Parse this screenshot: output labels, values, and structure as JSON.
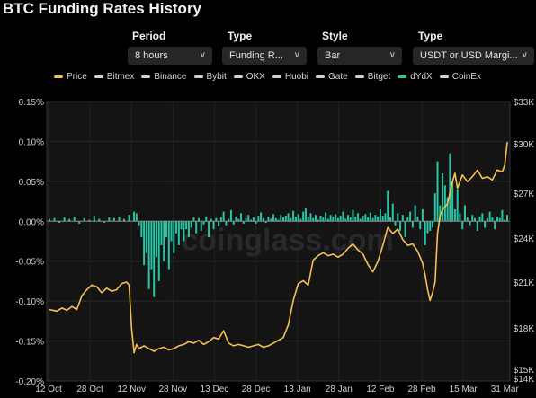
{
  "title": "BTC Funding Rates History",
  "controls": {
    "period": {
      "label": "Period",
      "value": "8 hours"
    },
    "type1": {
      "label": "Type",
      "value": "Funding R..."
    },
    "style": {
      "label": "Style",
      "value": "Bar"
    },
    "type2": {
      "label": "Type",
      "value": "USDT or USD Margi..."
    }
  },
  "legend": [
    {
      "name": "Price",
      "color": "#f5c054"
    },
    {
      "name": "Bitmex",
      "color": "#d0d0d0"
    },
    {
      "name": "Binance",
      "color": "#d0d0d0"
    },
    {
      "name": "Bybit",
      "color": "#d0d0d0"
    },
    {
      "name": "OKX",
      "color": "#d0d0d0"
    },
    {
      "name": "Huobi",
      "color": "#d0d0d0"
    },
    {
      "name": "Gate",
      "color": "#d0d0d0"
    },
    {
      "name": "Bitget",
      "color": "#d0d0d0"
    },
    {
      "name": "dYdX",
      "color": "#26c6a6"
    },
    {
      "name": "CoinEx",
      "color": "#d0d0d0"
    }
  ],
  "watermark": "coinglass.com",
  "chart_data": {
    "type": "bar+line",
    "title": "BTC Funding Rates History",
    "x_ticks": [
      "12 Oct",
      "28 Oct",
      "12 Nov",
      "28 Nov",
      "13 Dec",
      "28 Dec",
      "13 Jan",
      "28 Jan",
      "12 Feb",
      "28 Feb",
      "15 Mar",
      "31 Mar"
    ],
    "y_left": {
      "ticks": [
        "0.15%",
        "0.10%",
        "0.05%",
        "0.00%",
        "-0.05%",
        "-0.10%",
        "-0.15%",
        "-0.20%"
      ],
      "range": [
        -0.2,
        0.15
      ],
      "unit": "%"
    },
    "y_right": {
      "ticks": [
        "$33K",
        "$30K",
        "$27K",
        "$24K",
        "$21K",
        "$18K",
        "$15K",
        "$14K"
      ]
    },
    "grid": true,
    "legend_position": "top",
    "series": [
      {
        "name": "dYdX",
        "kind": "bar",
        "axis": "left",
        "color": "#26c6a6",
        "points": [
          [
            0,
            0.003
          ],
          [
            2,
            0.004
          ],
          [
            4,
            -0.002
          ],
          [
            6,
            0.005
          ],
          [
            8,
            0.003
          ],
          [
            10,
            0.006
          ],
          [
            12,
            -0.003
          ],
          [
            14,
            0.004
          ],
          [
            16,
            0.002
          ],
          [
            18,
            0.007
          ],
          [
            20,
            0.003
          ],
          [
            22,
            -0.002
          ],
          [
            24,
            0.005
          ],
          [
            26,
            0.004
          ],
          [
            28,
            0.006
          ],
          [
            30,
            0.003
          ],
          [
            32,
            0.008
          ],
          [
            34,
            0.012
          ],
          [
            35,
            0.01
          ],
          [
            36,
            -0.005
          ],
          [
            37,
            -0.02
          ],
          [
            38,
            -0.055
          ],
          [
            39,
            -0.04
          ],
          [
            40,
            -0.085
          ],
          [
            41,
            -0.06
          ],
          [
            42,
            -0.095
          ],
          [
            43,
            -0.045
          ],
          [
            44,
            -0.075
          ],
          [
            45,
            -0.03
          ],
          [
            46,
            -0.05
          ],
          [
            47,
            -0.02
          ],
          [
            48,
            -0.06
          ],
          [
            49,
            -0.025
          ],
          [
            50,
            -0.04
          ],
          [
            51,
            -0.015
          ],
          [
            52,
            -0.03
          ],
          [
            53,
            -0.01
          ],
          [
            54,
            -0.025
          ],
          [
            55,
            -0.01
          ],
          [
            56,
            -0.02
          ],
          [
            57,
            -0.008
          ],
          [
            58,
            0.005
          ],
          [
            59,
            -0.015
          ],
          [
            60,
            0.004
          ],
          [
            61,
            -0.012
          ],
          [
            62,
            -0.004
          ],
          [
            63,
            0.006
          ],
          [
            64,
            -0.02
          ],
          [
            65,
            0.003
          ],
          [
            66,
            -0.01
          ],
          [
            67,
            0.004
          ],
          [
            68,
            -0.006
          ],
          [
            69,
            0.005
          ],
          [
            70,
            0.012
          ],
          [
            71,
            -0.005
          ],
          [
            72,
            0.003
          ],
          [
            73,
            0.014
          ],
          [
            74,
            -0.004
          ],
          [
            75,
            0.006
          ],
          [
            76,
            0.003
          ],
          [
            77,
            0.01
          ],
          [
            78,
            -0.003
          ],
          [
            79,
            0.004
          ],
          [
            80,
            0.008
          ],
          [
            81,
            0.002
          ],
          [
            82,
            0.005
          ],
          [
            83,
            -0.003
          ],
          [
            84,
            0.007
          ],
          [
            85,
            0.011
          ],
          [
            86,
            0.004
          ],
          [
            87,
            -0.002
          ],
          [
            88,
            0.006
          ],
          [
            89,
            0.003
          ],
          [
            90,
            0.009
          ],
          [
            91,
            0.004
          ],
          [
            92,
            0.002
          ],
          [
            93,
            0.008
          ],
          [
            94,
            0.005
          ],
          [
            95,
            0.007
          ],
          [
            96,
            0.01
          ],
          [
            97,
            0.004
          ],
          [
            98,
            0.013
          ],
          [
            99,
            0.006
          ],
          [
            100,
            0.009
          ],
          [
            101,
            0.003
          ],
          [
            102,
            0.012
          ],
          [
            103,
            0.016
          ],
          [
            104,
            0.006
          ],
          [
            105,
            0.01
          ],
          [
            106,
            0.004
          ],
          [
            107,
            0.008
          ],
          [
            108,
            0.002
          ],
          [
            109,
            0.007
          ],
          [
            110,
            0.005
          ],
          [
            111,
            0.011
          ],
          [
            112,
            0.003
          ],
          [
            113,
            0.008
          ],
          [
            114,
            0.006
          ],
          [
            115,
            0.009
          ],
          [
            116,
            0.004
          ],
          [
            117,
            0.007
          ],
          [
            118,
            0.012
          ],
          [
            119,
            0.003
          ],
          [
            120,
            0.008
          ],
          [
            121,
            0.005
          ],
          [
            122,
            0.014
          ],
          [
            123,
            0.006
          ],
          [
            124,
            0.01
          ],
          [
            125,
            0.003
          ],
          [
            126,
            0.007
          ],
          [
            127,
            0.009
          ],
          [
            128,
            0.005
          ],
          [
            129,
            0.011
          ],
          [
            130,
            0.004
          ],
          [
            131,
            0.008
          ],
          [
            132,
            0.006
          ],
          [
            133,
            0.015
          ],
          [
            134,
            0.007
          ],
          [
            135,
            0.01
          ],
          [
            136,
            0.038
          ],
          [
            137,
            0.005
          ],
          [
            138,
            0.022
          ],
          [
            139,
            -0.005
          ],
          [
            140,
            0.01
          ],
          [
            141,
            -0.012
          ],
          [
            142,
            0.008
          ],
          [
            143,
            -0.02
          ],
          [
            144,
            0.005
          ],
          [
            145,
            0.012
          ],
          [
            146,
            -0.008
          ],
          [
            147,
            0.02
          ],
          [
            148,
            0.006
          ],
          [
            149,
            -0.01
          ],
          [
            150,
            0.015
          ],
          [
            151,
            -0.03
          ],
          [
            152,
            -0.015
          ],
          [
            153,
            -0.012
          ],
          [
            154,
            -0.008
          ],
          [
            155,
            0.035
          ],
          [
            156,
            0.075
          ],
          [
            157,
            0.02
          ],
          [
            158,
            0.06
          ],
          [
            159,
            0.045
          ],
          [
            160,
            0.03
          ],
          [
            161,
            0.085
          ],
          [
            162,
            0.05
          ],
          [
            163,
            0.015
          ],
          [
            164,
            0.04
          ],
          [
            165,
            0.01
          ],
          [
            166,
            -0.01
          ],
          [
            167,
            0.02
          ],
          [
            168,
            0.005
          ],
          [
            169,
            -0.005
          ],
          [
            170,
            0.008
          ],
          [
            171,
            0.004
          ],
          [
            172,
            -0.012
          ],
          [
            173,
            0.006
          ],
          [
            174,
            0.01
          ],
          [
            175,
            -0.008
          ],
          [
            176,
            0.004
          ],
          [
            177,
            0.012
          ],
          [
            178,
            0.005
          ],
          [
            179,
            -0.01
          ],
          [
            180,
            0.006
          ],
          [
            181,
            0.004
          ],
          [
            182,
            0.014
          ],
          [
            183,
            0.002
          ],
          [
            184,
            0.008
          ]
        ]
      },
      {
        "name": "Price",
        "kind": "line",
        "axis": "right",
        "color": "#f5c054",
        "points": [
          [
            0,
            19200
          ],
          [
            3,
            19100
          ],
          [
            5,
            19300
          ],
          [
            7,
            19150
          ],
          [
            9,
            19400
          ],
          [
            11,
            19200
          ],
          [
            13,
            20100
          ],
          [
            15,
            20500
          ],
          [
            17,
            20800
          ],
          [
            19,
            20700
          ],
          [
            21,
            20300
          ],
          [
            23,
            20600
          ],
          [
            25,
            20400
          ],
          [
            27,
            20500
          ],
          [
            29,
            20900
          ],
          [
            31,
            21000
          ],
          [
            32,
            20800
          ],
          [
            33,
            18000
          ],
          [
            34,
            16200
          ],
          [
            35,
            16800
          ],
          [
            36,
            16500
          ],
          [
            38,
            16700
          ],
          [
            40,
            16500
          ],
          [
            42,
            16300
          ],
          [
            44,
            16500
          ],
          [
            46,
            16600
          ],
          [
            48,
            16400
          ],
          [
            50,
            16500
          ],
          [
            52,
            16700
          ],
          [
            54,
            16800
          ],
          [
            56,
            17000
          ],
          [
            58,
            16900
          ],
          [
            60,
            17100
          ],
          [
            62,
            16800
          ],
          [
            64,
            17000
          ],
          [
            66,
            17300
          ],
          [
            68,
            17200
          ],
          [
            70,
            17800
          ],
          [
            72,
            16900
          ],
          [
            74,
            16700
          ],
          [
            76,
            16800
          ],
          [
            78,
            16700
          ],
          [
            80,
            16600
          ],
          [
            82,
            16700
          ],
          [
            84,
            16800
          ],
          [
            86,
            16600
          ],
          [
            88,
            16700
          ],
          [
            90,
            16900
          ],
          [
            92,
            17100
          ],
          [
            94,
            17300
          ],
          [
            96,
            18200
          ],
          [
            98,
            19800
          ],
          [
            100,
            20900
          ],
          [
            102,
            21100
          ],
          [
            104,
            20800
          ],
          [
            106,
            22500
          ],
          [
            108,
            22800
          ],
          [
            110,
            23000
          ],
          [
            112,
            22800
          ],
          [
            114,
            22900
          ],
          [
            116,
            22700
          ],
          [
            118,
            22900
          ],
          [
            120,
            23300
          ],
          [
            122,
            23600
          ],
          [
            124,
            23200
          ],
          [
            126,
            22900
          ],
          [
            128,
            22200
          ],
          [
            130,
            21700
          ],
          [
            132,
            22400
          ],
          [
            134,
            23500
          ],
          [
            136,
            24700
          ],
          [
            138,
            24300
          ],
          [
            140,
            24600
          ],
          [
            142,
            23900
          ],
          [
            144,
            23500
          ],
          [
            146,
            23600
          ],
          [
            148,
            23100
          ],
          [
            150,
            22300
          ],
          [
            151,
            21500
          ],
          [
            152,
            20500
          ],
          [
            153,
            19800
          ],
          [
            154,
            20300
          ],
          [
            155,
            21000
          ],
          [
            156,
            24300
          ],
          [
            157,
            25500
          ],
          [
            158,
            25900
          ],
          [
            160,
            26300
          ],
          [
            162,
            27700
          ],
          [
            163,
            28200
          ],
          [
            164,
            27300
          ],
          [
            166,
            28100
          ],
          [
            168,
            27700
          ],
          [
            170,
            28000
          ],
          [
            172,
            28400
          ],
          [
            174,
            27900
          ],
          [
            176,
            28000
          ],
          [
            178,
            27800
          ],
          [
            180,
            28400
          ],
          [
            182,
            28300
          ],
          [
            183,
            28700
          ],
          [
            184,
            30100
          ]
        ]
      }
    ]
  }
}
